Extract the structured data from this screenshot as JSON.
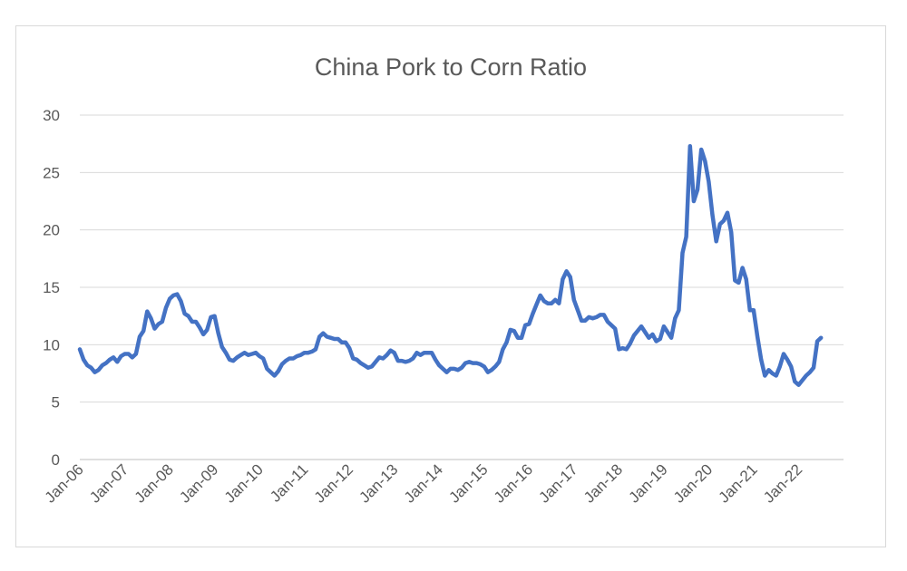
{
  "chart_data": {
    "type": "line",
    "title": "China Pork to Corn Ratio",
    "xlabel": "",
    "ylabel": "",
    "ylim": [
      0,
      30
    ],
    "yticks": [
      0,
      5,
      10,
      15,
      20,
      25,
      30
    ],
    "grid": true,
    "legend": "none",
    "line_color": "#4472C4",
    "xtick_labels": [
      "Jan-06",
      "Jan-07",
      "Jan-08",
      "Jan-09",
      "Jan-10",
      "Jan-11",
      "Jan-12",
      "Jan-13",
      "Jan-14",
      "Jan-15",
      "Jan-16",
      "Jan-17",
      "Jan-18",
      "Jan-19",
      "Jan-20",
      "Jan-21",
      "Jan-22"
    ],
    "x_start": "2006-01",
    "series": [
      {
        "values": [
          9.6,
          8.7,
          8.2,
          8.0,
          7.6,
          7.8,
          8.2,
          8.4,
          8.7,
          8.9,
          8.5,
          9.0,
          9.2,
          9.2,
          8.9,
          9.2,
          10.7,
          11.2,
          12.9,
          12.3,
          11.4,
          11.8,
          12.0,
          13.2,
          14.0,
          14.3,
          14.4,
          13.8,
          12.7,
          12.5,
          12.0,
          12.0,
          11.5,
          10.9,
          11.3,
          12.4,
          12.5,
          11.0,
          9.8,
          9.3,
          8.7,
          8.6,
          8.9,
          9.1,
          9.3,
          9.1,
          9.2,
          9.3,
          9.0,
          8.8,
          7.9,
          7.6,
          7.3,
          7.7,
          8.3,
          8.6,
          8.8,
          8.8,
          9.0,
          9.1,
          9.3,
          9.3,
          9.4,
          9.6,
          10.7,
          11.0,
          10.7,
          10.6,
          10.5,
          10.5,
          10.2,
          10.2,
          9.7,
          8.8,
          8.7,
          8.4,
          8.2,
          8.0,
          8.1,
          8.5,
          8.9,
          8.8,
          9.1,
          9.5,
          9.3,
          8.6,
          8.6,
          8.5,
          8.6,
          8.8,
          9.3,
          9.1,
          9.3,
          9.3,
          9.3,
          8.7,
          8.2,
          7.9,
          7.6,
          7.9,
          7.9,
          7.8,
          8.0,
          8.4,
          8.5,
          8.4,
          8.4,
          8.3,
          8.1,
          7.6,
          7.8,
          8.1,
          8.5,
          9.6,
          10.2,
          11.3,
          11.2,
          10.6,
          10.6,
          11.7,
          11.8,
          12.7,
          13.5,
          14.3,
          13.8,
          13.6,
          13.6,
          13.9,
          13.6,
          15.7,
          16.4,
          15.9,
          13.9,
          13.0,
          12.1,
          12.1,
          12.4,
          12.3,
          12.4,
          12.6,
          12.6,
          12.0,
          11.7,
          11.4,
          9.6,
          9.7,
          9.6,
          10.1,
          10.8,
          11.2,
          11.6,
          11.1,
          10.6,
          10.9,
          10.3,
          10.5,
          11.6,
          11.1,
          10.6,
          12.3,
          13.0,
          18.0,
          19.4,
          27.3,
          22.5,
          23.5,
          27.0,
          26.0,
          24.2,
          21.3,
          19.0,
          20.5,
          20.8,
          21.5,
          19.8,
          15.6,
          15.4,
          16.7,
          15.7,
          13.0,
          13.0,
          10.7,
          8.7,
          7.3,
          7.8,
          7.5,
          7.3,
          8.1,
          9.2,
          8.7,
          8.1,
          6.8,
          6.5,
          6.9,
          7.3,
          7.6,
          8.0,
          10.3,
          10.6
        ]
      }
    ]
  }
}
